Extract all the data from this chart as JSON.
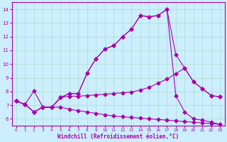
{
  "xlabel": "Windchill (Refroidissement éolien,°C)",
  "bg_color": "#cceeff",
  "grid_color": "#aaddcc",
  "line_color": "#aa00aa",
  "marker": "D",
  "marker_size": 2.5,
  "xlim": [
    -0.5,
    23.5
  ],
  "ylim": [
    5.5,
    14.5
  ],
  "yticks": [
    6,
    7,
    8,
    9,
    10,
    11,
    12,
    13,
    14
  ],
  "xticks": [
    0,
    1,
    2,
    3,
    4,
    5,
    6,
    7,
    8,
    9,
    10,
    11,
    12,
    13,
    14,
    15,
    16,
    17,
    18,
    19,
    20,
    21,
    22,
    23
  ],
  "series": [
    {
      "x": [
        0,
        1,
        2,
        3,
        4,
        5,
        6,
        7,
        8,
        9,
        10,
        11,
        12,
        13,
        14,
        15,
        16,
        17,
        18,
        19,
        20,
        21,
        22,
        23
      ],
      "y": [
        7.3,
        7.05,
        6.5,
        6.85,
        6.85,
        6.85,
        6.7,
        6.6,
        6.5,
        6.4,
        6.3,
        6.2,
        6.15,
        6.1,
        6.05,
        6.0,
        5.95,
        5.9,
        5.85,
        5.8,
        5.75,
        5.7,
        5.65,
        5.6
      ]
    },
    {
      "x": [
        0,
        1,
        2,
        3,
        4,
        5,
        6,
        7,
        8,
        9,
        10,
        11,
        12,
        13,
        14,
        15,
        16,
        17,
        18,
        19,
        20,
        21,
        22,
        23
      ],
      "y": [
        7.3,
        7.05,
        6.5,
        6.85,
        6.85,
        7.55,
        7.65,
        7.65,
        7.7,
        7.75,
        7.8,
        7.85,
        7.9,
        7.95,
        8.1,
        8.3,
        8.6,
        8.9,
        9.3,
        9.7,
        8.7,
        8.2,
        7.7,
        7.6
      ]
    },
    {
      "x": [
        0,
        1,
        2,
        3,
        4,
        5,
        6,
        7,
        8,
        9,
        10,
        11,
        12,
        13,
        14,
        15,
        16,
        17,
        18,
        19,
        20,
        21,
        22,
        23
      ],
      "y": [
        7.3,
        7.05,
        6.5,
        6.85,
        6.85,
        7.55,
        7.85,
        7.85,
        9.35,
        10.4,
        11.1,
        11.35,
        12.0,
        12.55,
        13.55,
        13.45,
        13.55,
        14.0,
        10.7,
        9.7,
        8.7,
        8.2,
        7.7,
        7.6
      ]
    },
    {
      "x": [
        0,
        1,
        2,
        3,
        4,
        5,
        6,
        7,
        8,
        9,
        10,
        11,
        12,
        13,
        14,
        15,
        16,
        17,
        18,
        19,
        20,
        21,
        22,
        23
      ],
      "y": [
        7.3,
        7.05,
        8.05,
        6.85,
        6.85,
        7.55,
        7.85,
        7.85,
        9.35,
        10.4,
        11.1,
        11.35,
        12.0,
        12.55,
        13.55,
        13.45,
        13.55,
        14.0,
        7.7,
        6.5,
        6.0,
        5.9,
        5.75,
        5.6
      ]
    }
  ]
}
